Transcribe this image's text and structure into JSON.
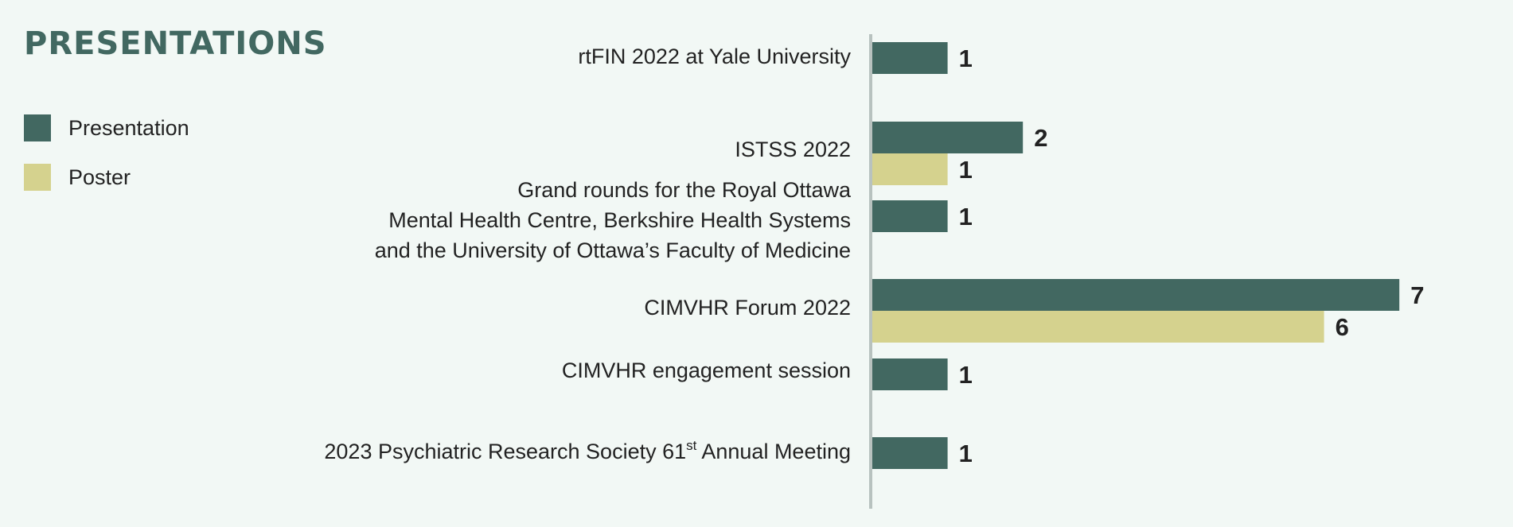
{
  "colors": {
    "presentation": "#426861",
    "poster": "#d5d28e",
    "title": "#426861",
    "axis": "#b8c2bf"
  },
  "chart_data": {
    "type": "bar",
    "orientation": "horizontal",
    "title": "PRESENTATIONS",
    "legend_placement": "top-left",
    "categories": [
      {
        "lines": [
          "rtFIN 2022 at Yale University"
        ]
      },
      {
        "lines": [
          "ISTSS 2022"
        ]
      },
      {
        "lines": [
          "Grand rounds for the Royal Ottawa",
          "Mental Health Centre, Berkshire Health Systems",
          "and the University of Ottawa’s Faculty of Medicine"
        ]
      },
      {
        "lines": [
          "CIMVHR Forum 2022"
        ]
      },
      {
        "lines": [
          "CIMVHR engagement session"
        ]
      },
      {
        "lines": [
          "2023 Psychiatric Research Society 61",
          "st",
          " Annual Meeting"
        ],
        "superscript_index": 1
      }
    ],
    "series": [
      {
        "name": "Presentation",
        "values": [
          1,
          2,
          1,
          7,
          1,
          1
        ]
      },
      {
        "name": "Poster",
        "values": [
          null,
          1,
          null,
          6,
          null,
          null
        ]
      }
    ],
    "xlim": [
      0,
      7
    ],
    "grid": false
  }
}
